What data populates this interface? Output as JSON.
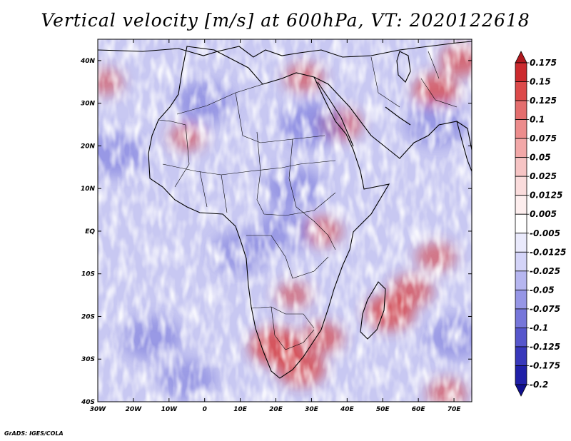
{
  "title": "Vertical velocity [m/s] at 600hPa, VT: 2020122618",
  "credit": "GrADS: IGES/COLA",
  "lat_labels": [
    "40N",
    "30N",
    "20N",
    "10N",
    "EQ",
    "10S",
    "20S",
    "30S",
    "40S"
  ],
  "lat_values": [
    40,
    30,
    20,
    10,
    0,
    -10,
    -20,
    -30,
    -40
  ],
  "lon_labels": [
    "30W",
    "20W",
    "10W",
    "0",
    "10E",
    "20E",
    "30E",
    "40E",
    "50E",
    "60E",
    "70E"
  ],
  "lon_values": [
    -30,
    -20,
    -10,
    0,
    10,
    20,
    30,
    40,
    50,
    60,
    70
  ],
  "map_extent": {
    "lon_min": -30,
    "lon_max": 75,
    "lat_min": -40,
    "lat_max": 45
  },
  "colorbar": {
    "labels": [
      "0.175",
      "0.15",
      "0.125",
      "0.1",
      "0.075",
      "0.05",
      "0.025",
      "0.0125",
      "0.005",
      "-0.005",
      "-0.0125",
      "-0.025",
      "-0.05",
      "-0.075",
      "-0.1",
      "-0.125",
      "-0.175",
      "-0.2"
    ],
    "colors": [
      "#b0181e",
      "#cc2a2e",
      "#dc4a4a",
      "#e46e6e",
      "#ec8c8c",
      "#f2a8a8",
      "#f6c4c4",
      "#fadcdc",
      "#fdeeee",
      "#ffffff",
      "#eaeafc",
      "#d4d4f8",
      "#b6b6f0",
      "#9696e6",
      "#7676da",
      "#5656cc",
      "#3838bb",
      "#2020a8",
      "#101090"
    ]
  },
  "field_highlights": {
    "red": [
      {
        "lon": 20,
        "lat": -27,
        "strength": 0.9
      },
      {
        "lon": 27,
        "lat": -32,
        "strength": 0.8
      },
      {
        "lon": 52,
        "lat": -19,
        "strength": 0.8
      },
      {
        "lon": 58,
        "lat": -14,
        "strength": 0.6
      },
      {
        "lon": 65,
        "lat": -6,
        "strength": 0.5
      },
      {
        "lon": 65,
        "lat": 33,
        "strength": 0.7
      },
      {
        "lon": 72,
        "lat": 40,
        "strength": 0.6
      },
      {
        "lon": 28,
        "lat": 36,
        "strength": 0.5
      },
      {
        "lon": 38,
        "lat": 25,
        "strength": 0.6
      },
      {
        "lon": 33,
        "lat": 0,
        "strength": 0.5
      },
      {
        "lon": -5,
        "lat": 22,
        "strength": 0.4
      },
      {
        "lon": 25,
        "lat": -15,
        "strength": 0.4
      },
      {
        "lon": -28,
        "lat": 35,
        "strength": 0.4
      },
      {
        "lon": 68,
        "lat": -38,
        "strength": 0.5
      },
      {
        "lon": 33,
        "lat": -25,
        "strength": 0.6
      }
    ],
    "blue": [
      {
        "lon": 30,
        "lat": 25,
        "strength": 0.5
      },
      {
        "lon": 25,
        "lat": 10,
        "strength": 0.4
      },
      {
        "lon": 0,
        "lat": 30,
        "strength": 0.4
      },
      {
        "lon": -15,
        "lat": -25,
        "strength": 0.4
      },
      {
        "lon": -25,
        "lat": 18,
        "strength": 0.45
      },
      {
        "lon": 65,
        "lat": 25,
        "strength": 0.4
      },
      {
        "lon": 10,
        "lat": -5,
        "strength": 0.35
      },
      {
        "lon": 70,
        "lat": -25,
        "strength": 0.35
      },
      {
        "lon": -5,
        "lat": -35,
        "strength": 0.35
      },
      {
        "lon": 22,
        "lat": 0,
        "strength": 0.35
      }
    ]
  }
}
